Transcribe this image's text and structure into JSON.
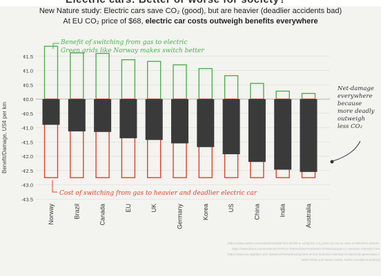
{
  "header": {
    "top_title_fragment": "Electric cars: Better or worse for society?",
    "subtitle_1": "New Nature study: Electric cars save CO₂ (good), but are heavier (deadlier accidents bad)",
    "subtitle_2_prefix": "At EU CO₂ price of $68, ",
    "subtitle_2_bold": "electric car costs outweigh benefits everywhere"
  },
  "annotations": {
    "benefit_line1": "Benefit of switching from gas to electric",
    "benefit_line2": "Green grids like Norway makes switch better",
    "cost_line": "Cost of switching from gas to heavier and deadlier electric car",
    "net_damage": [
      "Net-damage",
      "everywhere",
      "because",
      "more deadly",
      "outweigh",
      "less CO₂"
    ]
  },
  "footnote": {
    "line1": "https://www.nature.com/articles/s41586-021-02780-8, using EU CO₂ price on Oct 22 2021 of €59.90 in 2021$ as of",
    "line2": "https://www.ifeoni.com/products/197/EUA-futures/data?marketId=4734633&span=3, emission intensity from",
    "line3": "https://www.iea.org/data-and-statistics/charts/development-of-co2-emission-intensity-of-electricity-generation-in-selected-countries",
    "line4": "2000-2020) and Nature article, twitter.com/BjornLomborg"
  },
  "chart_data": {
    "type": "bar",
    "ylabel": "Benefit/Damage, US¢ per km",
    "ylim": [
      -3.5,
      2.0
    ],
    "yticks": [
      1.5,
      1.0,
      0.5,
      0.0,
      -0.5,
      -1.0,
      -1.5,
      -2.0,
      -2.5,
      -3.0,
      -3.5
    ],
    "ytick_labels": [
      "¢1.5",
      "¢1.0",
      "¢0.5",
      "¢0.0",
      "-¢0.5",
      "-¢1.0",
      "-¢1.5",
      "-¢2.0",
      "-¢2.5",
      "-¢3.0",
      "-¢3.5"
    ],
    "grid": true,
    "categories": [
      "Norway",
      "Brazil",
      "Canada",
      "EU",
      "UK",
      "Germany",
      "Korea",
      "US",
      "China",
      "India",
      "Australia"
    ],
    "series": [
      {
        "name": "Benefit of switching from gas to electric",
        "values": [
          1.85,
          1.62,
          1.6,
          1.38,
          1.32,
          1.2,
          1.07,
          0.82,
          0.55,
          0.28,
          0.2
        ],
        "color": "#4caf50",
        "style": "outline"
      },
      {
        "name": "Cost of switching from gas to heavier and deadlier electric car",
        "values": [
          -2.75,
          -2.75,
          -2.75,
          -2.75,
          -2.75,
          -2.75,
          -2.75,
          -2.75,
          -2.75,
          -2.75,
          -2.75
        ],
        "color": "#e0402a",
        "style": "outline"
      },
      {
        "name": "Net",
        "values": [
          -0.9,
          -1.13,
          -1.15,
          -1.37,
          -1.43,
          -1.55,
          -1.68,
          -1.93,
          -2.2,
          -2.47,
          -2.55
        ],
        "color": "#3a3a3a",
        "style": "filled"
      }
    ]
  }
}
